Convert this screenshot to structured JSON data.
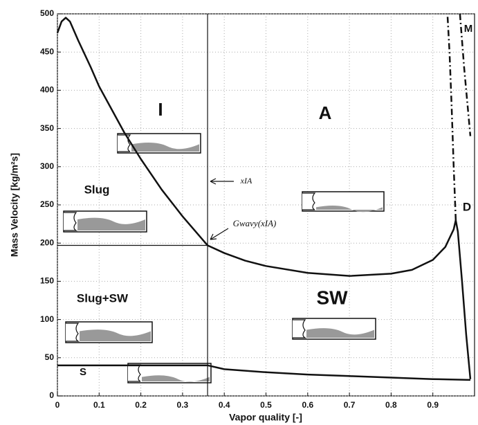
{
  "chart_data": {
    "type": "line",
    "xlabel": "Vapor quality [-]",
    "ylabel": "Mass Velocity [kg/m²s]",
    "xlim": [
      0,
      1
    ],
    "ylim": [
      0,
      500
    ],
    "xticks": [
      0,
      0.1,
      0.2,
      0.3,
      0.4,
      0.5,
      0.6,
      0.7,
      0.8,
      0.9
    ],
    "yticks": [
      0,
      50,
      100,
      150,
      200,
      250,
      300,
      350,
      400,
      450,
      500
    ],
    "grid": true,
    "series": [
      {
        "color": "#111111",
        "dash": false,
        "x": [
          0,
          0.01,
          0.02,
          0.03,
          0.05,
          0.08,
          0.1,
          0.13,
          0.16,
          0.2,
          0.25,
          0.3,
          0.36,
          0.4,
          0.45,
          0.5,
          0.6,
          0.7,
          0.8,
          0.85,
          0.9,
          0.93,
          0.95,
          0.955,
          0.96,
          0.97,
          0.98,
          0.99
        ],
        "values": [
          475,
          490,
          495,
          490,
          465,
          430,
          405,
          375,
          345,
          310,
          270,
          235,
          197,
          187,
          177,
          170,
          161,
          157,
          160,
          165,
          178,
          195,
          218,
          230,
          215,
          150,
          80,
          22
        ]
      },
      {
        "color": "#111111",
        "dash": false,
        "x": [
          0,
          0.36,
          0.4,
          0.5,
          0.6,
          0.7,
          0.8,
          0.9,
          0.99
        ],
        "values": [
          40,
          40,
          35,
          31,
          28,
          26,
          24,
          22,
          21
        ]
      },
      {
        "color": "#111111",
        "dash": false,
        "x": [
          0,
          0.36
        ],
        "values": [
          197,
          197
        ]
      },
      {
        "color": "#111111",
        "dash": false,
        "x": [
          0.36,
          0.36
        ],
        "values": [
          0,
          500
        ]
      },
      {
        "color": "#111111",
        "dash": true,
        "x": [
          0.955,
          0.95,
          0.945,
          0.94,
          0.935
        ],
        "values": [
          230,
          300,
          380,
          450,
          500
        ]
      },
      {
        "color": "#111111",
        "dash": true,
        "x": [
          0.965,
          0.975,
          0.99
        ],
        "values": [
          500,
          430,
          340
        ]
      }
    ],
    "annotations": [
      "I",
      "A",
      "Slug",
      "Slug+SW",
      "SW",
      "S",
      "M",
      "D",
      "xIA",
      "Gwavy(xIA)"
    ]
  }
}
